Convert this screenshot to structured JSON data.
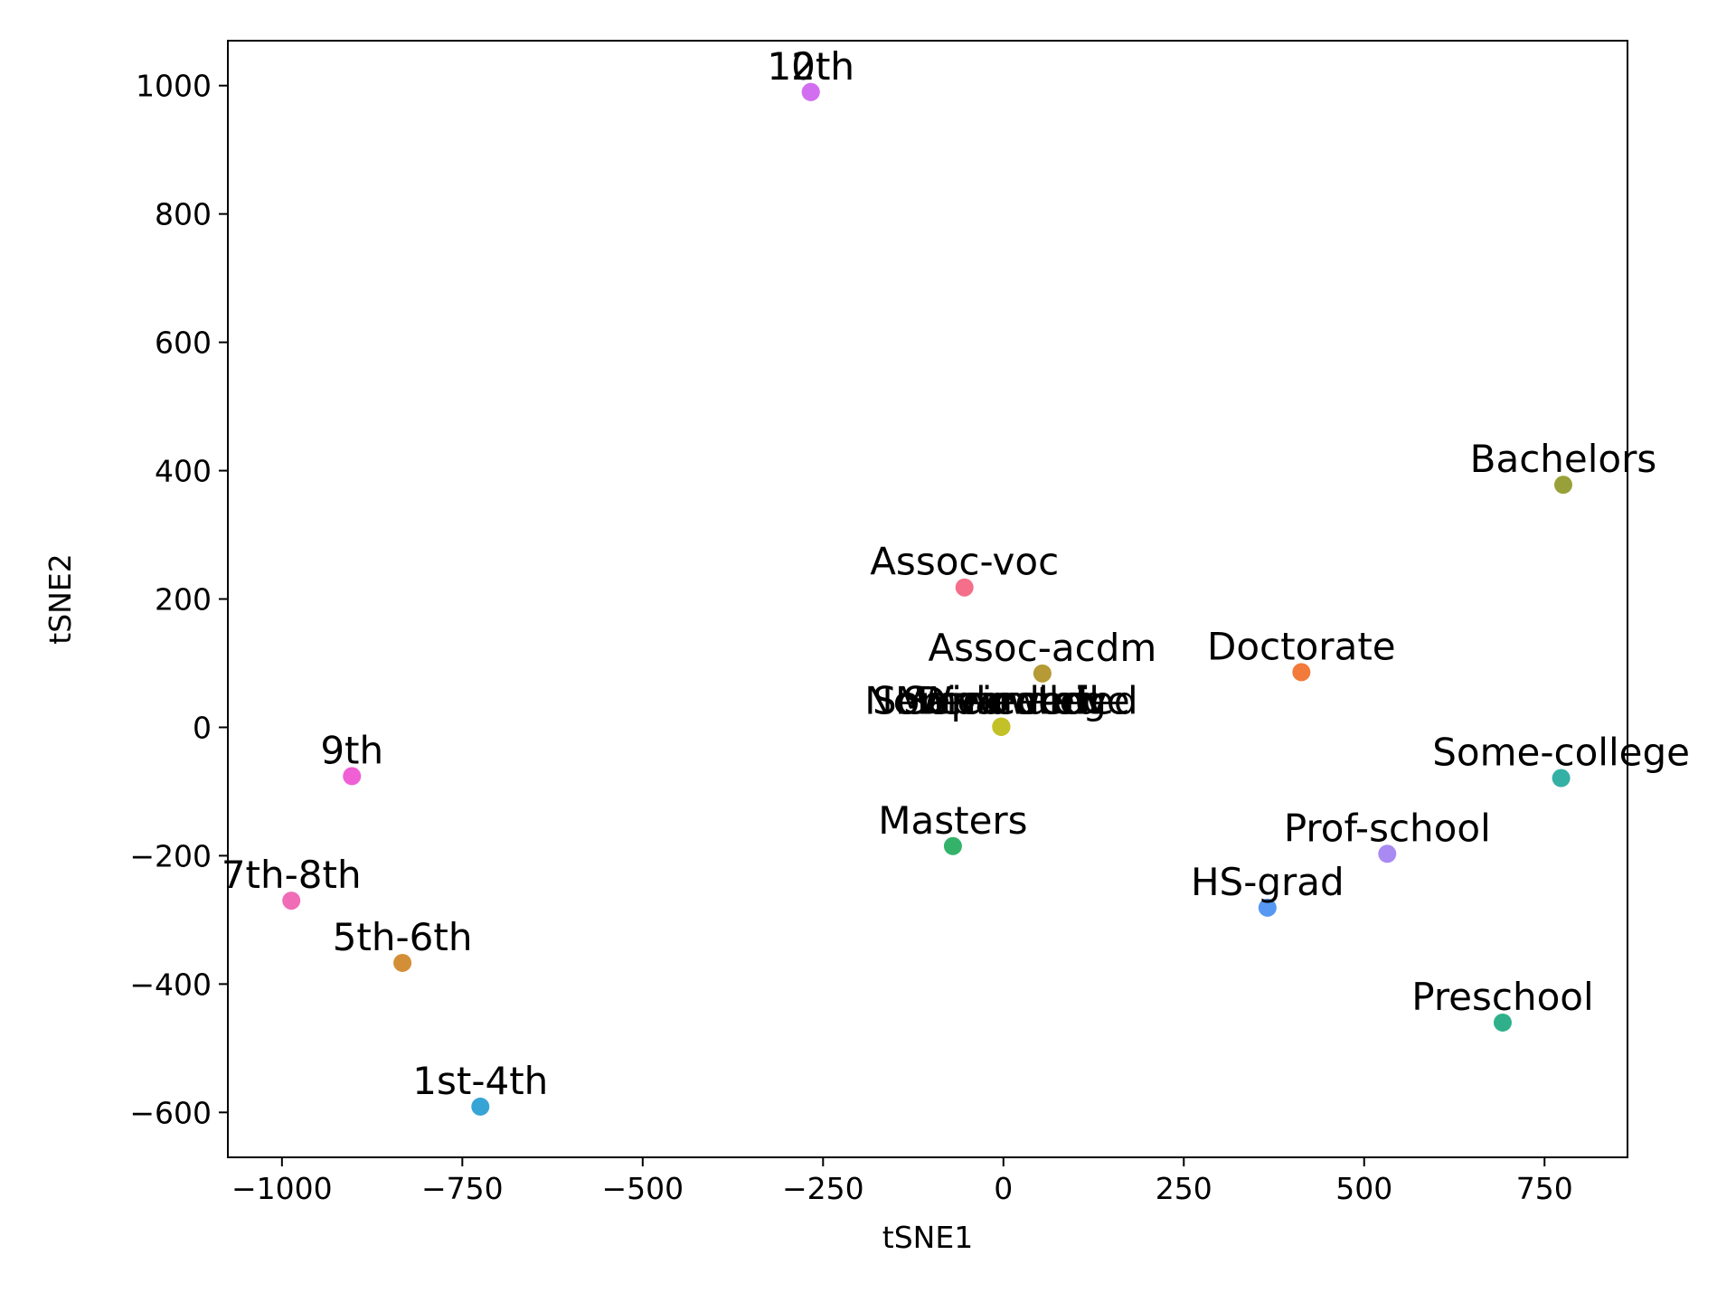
{
  "chart_data": {
    "type": "scatter",
    "title": "",
    "xlabel": "tSNE1",
    "ylabel": "tSNE2",
    "xlim": [
      -1075,
      865
    ],
    "ylim": [
      -670,
      1070
    ],
    "xticks": [
      -1000,
      -750,
      -500,
      -250,
      0,
      250,
      500,
      750
    ],
    "yticks": [
      -600,
      -400,
      -200,
      0,
      200,
      400,
      600,
      800,
      1000
    ],
    "xtick_labels": [
      "−1000",
      "−750",
      "−500",
      "−250",
      "0",
      "250",
      "500",
      "750"
    ],
    "ytick_labels": [
      "−600",
      "−400",
      "−200",
      "0",
      "200",
      "400",
      "600",
      "800",
      "1000"
    ],
    "grid": false,
    "legend": "none",
    "points": [
      {
        "label": "10th",
        "x": -267,
        "y": 990,
        "color": "#d26ff0"
      },
      {
        "label": "12th",
        "x": -267,
        "y": 990,
        "color": "#d26ff0"
      },
      {
        "label": "Bachelors",
        "x": 776,
        "y": 378,
        "color": "#98a139"
      },
      {
        "label": "Assoc-voc",
        "x": -54,
        "y": 218,
        "color": "#f56f8a"
      },
      {
        "label": "Assoc-acdm",
        "x": 54,
        "y": 84,
        "color": "#b59a35"
      },
      {
        "label": "Doctorate",
        "x": 413,
        "y": 86,
        "color": "#f27a3a"
      },
      {
        "label": "Some-college",
        "x": -3,
        "y": 1,
        "color": "#c3c128"
      },
      {
        "label": "Never-married",
        "x": -3,
        "y": 1,
        "color": "#c3c128"
      },
      {
        "label": "Widowed",
        "x": -3,
        "y": 1,
        "color": "#c3c128"
      },
      {
        "label": "Divorced",
        "x": -3,
        "y": 1,
        "color": "#c3c128"
      },
      {
        "label": "Separated",
        "x": -3,
        "y": 1,
        "color": "#c3c128"
      },
      {
        "label": "Married-civ",
        "x": -3,
        "y": 1,
        "color": "#c3c128"
      },
      {
        "label": "Some-college",
        "x": 773,
        "y": -79,
        "color": "#34b0a4"
      },
      {
        "label": "9th",
        "x": -903,
        "y": -76,
        "color": "#f15fd5"
      },
      {
        "label": "Masters",
        "x": -70,
        "y": -185,
        "color": "#35b26a"
      },
      {
        "label": "Prof-school",
        "x": 532,
        "y": -197,
        "color": "#a98af2"
      },
      {
        "label": "7th-8th",
        "x": -987,
        "y": -270,
        "color": "#f06cb7"
      },
      {
        "label": "HS-grad",
        "x": 366,
        "y": -281,
        "color": "#5798f2"
      },
      {
        "label": "5th-6th",
        "x": -833,
        "y": -367,
        "color": "#d38f37"
      },
      {
        "label": "Preschool",
        "x": 692,
        "y": -460,
        "color": "#2fb08b"
      },
      {
        "label": "1st-4th",
        "x": -725,
        "y": -591,
        "color": "#37a4d6"
      }
    ]
  }
}
